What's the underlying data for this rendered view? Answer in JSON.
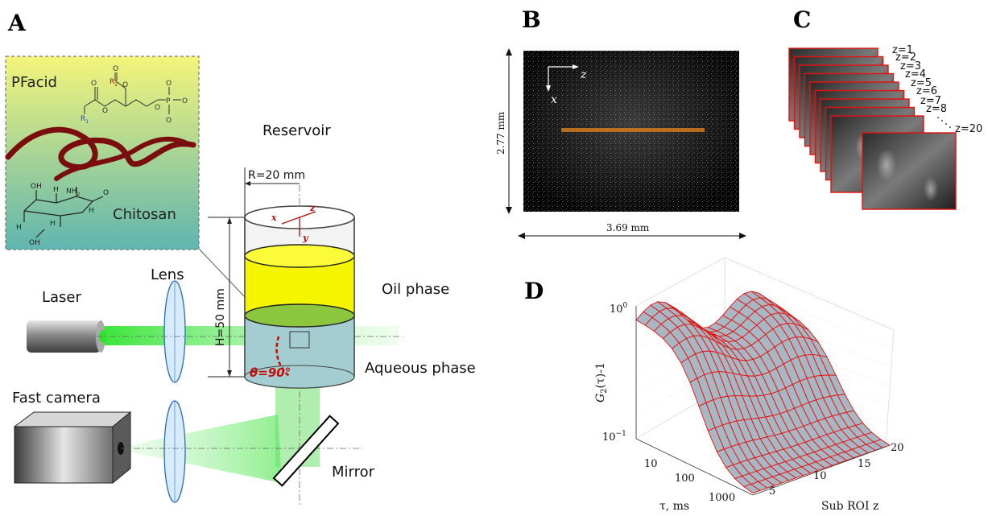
{
  "panels": {
    "a": "A",
    "b": "B",
    "c": "C",
    "d": "D"
  },
  "panel_a": {
    "inset_pfacid": "PFacid",
    "inset_chitosan": "Chitosan",
    "chem_r1": "R",
    "chem_r1_sub": "1",
    "chem_r2": "R",
    "chem_r2_sub": "2",
    "chem_o": "O",
    "chem_p": "P",
    "chem_h": "H",
    "chem_oh": "OH",
    "chem_nh2": "NH",
    "chem_nh2_sub": "2",
    "reservoir": "Reservoir",
    "radius": "R=20 mm",
    "height": "H=50 mm",
    "laser": "Laser",
    "lens": "Lens",
    "oil": "Oil phase",
    "aqueous": "Aqueous phase",
    "camera": "Fast camera",
    "mirror": "Mirror",
    "angle": "θ=90°",
    "axis_x": "x",
    "axis_y": "y",
    "axis_z": "z"
  },
  "panel_b": {
    "axis_z": "z",
    "axis_x": "x",
    "height": "2.77 mm",
    "width": "3.69 mm"
  },
  "panel_c": {
    "labels": [
      "z=1",
      "z=2",
      "z=3",
      "z=4",
      "z=5",
      "z=6",
      "z=7",
      "z=8"
    ],
    "last": "z=20"
  },
  "panel_d": {
    "ylabel_main": "G",
    "ylabel_sub": "2",
    "ylabel_rest": "(τ)-1",
    "ytick_top": "10",
    "ytick_top_exp": "0",
    "ytick_bottom": "10",
    "ytick_bottom_exp": "−1",
    "tau_ticks": [
      "10",
      "100",
      "1000"
    ],
    "z_ticks": [
      "5",
      "10",
      "15",
      "20"
    ],
    "xlabel": "τ, ms",
    "zlabel": "Sub ROI z"
  },
  "colors": {
    "inset_top": "#f4f57a",
    "inset_bottom": "#5fb5b0",
    "oil": "#f5f500",
    "interface": "#8cc63f",
    "aqueous": "#9ac9cc",
    "laser_beam": "#33e433",
    "mesh_red": "#e8100c",
    "surface": "#9fb1bf",
    "chitosan": "#7a0d0d",
    "angle_red": "#c0120c"
  }
}
